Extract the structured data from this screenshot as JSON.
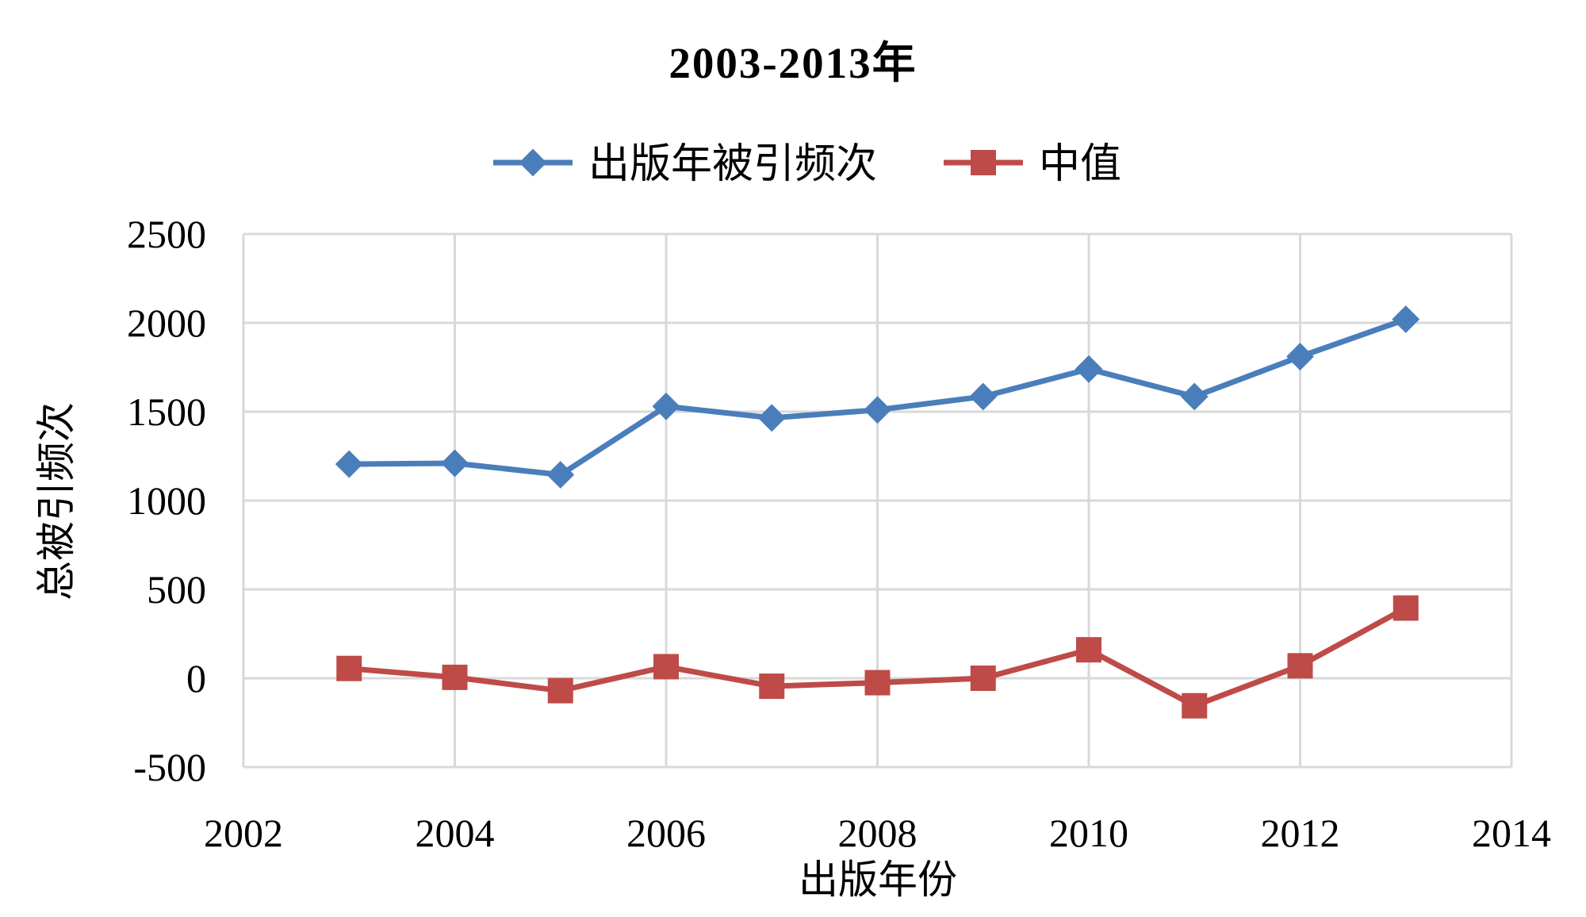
{
  "chart_data": {
    "type": "line",
    "title": "2003-2013年",
    "xlabel": "出版年份",
    "ylabel": "总被引频次",
    "xlim": [
      2002,
      2014
    ],
    "ylim": [
      -500,
      2500
    ],
    "x_ticks": [
      "2002",
      "2004",
      "2006",
      "2008",
      "2010",
      "2012",
      "2014"
    ],
    "y_ticks": [
      "-500",
      "0",
      "500",
      "1000",
      "1500",
      "2000",
      "2500"
    ],
    "x_tick_values": [
      2002,
      2004,
      2006,
      2008,
      2010,
      2012,
      2014
    ],
    "y_tick_values": [
      -500,
      0,
      500,
      1000,
      1500,
      2000,
      2500
    ],
    "grid": true,
    "legend_position": "top-center",
    "x": [
      2003,
      2004,
      2005,
      2006,
      2007,
      2008,
      2009,
      2010,
      2011,
      2012,
      2013
    ],
    "series": [
      {
        "name": "出版年被引频次",
        "color": "#4a7ebb",
        "marker": "diamond",
        "values": [
          1205,
          1210,
          1145,
          1530,
          1465,
          1510,
          1585,
          1740,
          1585,
          1810,
          2020
        ]
      },
      {
        "name": "中值",
        "color": "#be4b48",
        "marker": "square",
        "values": [
          55,
          5,
          -70,
          65,
          -45,
          -25,
          0,
          160,
          -155,
          70,
          395
        ]
      }
    ]
  }
}
